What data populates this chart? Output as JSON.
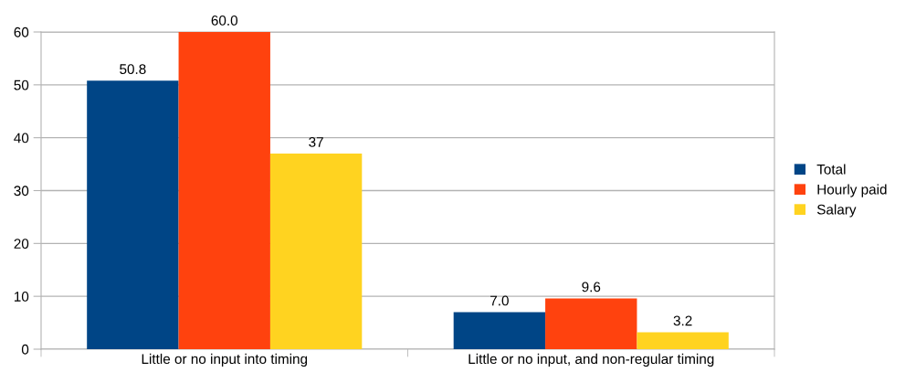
{
  "chart_data": {
    "type": "bar",
    "categories": [
      "Little or no input into timing",
      "Little or no input, and non-regular timing"
    ],
    "series": [
      {
        "name": "Total",
        "color": "#004586",
        "values": [
          50.8,
          7.0
        ],
        "value_labels": [
          "50.8",
          "7.0"
        ]
      },
      {
        "name": "Hourly paid",
        "color": "#ff420e",
        "values": [
          60.0,
          9.6
        ],
        "value_labels": [
          "60.0",
          "9.6"
        ]
      },
      {
        "name": "Salary",
        "color": "#ffd320",
        "values": [
          37,
          3.2
        ],
        "value_labels": [
          "37",
          "3.2"
        ]
      }
    ],
    "ylim": [
      0,
      60
    ],
    "yticks": [
      0,
      10,
      20,
      30,
      40,
      50,
      60
    ],
    "grid": "y",
    "legend": "right"
  }
}
